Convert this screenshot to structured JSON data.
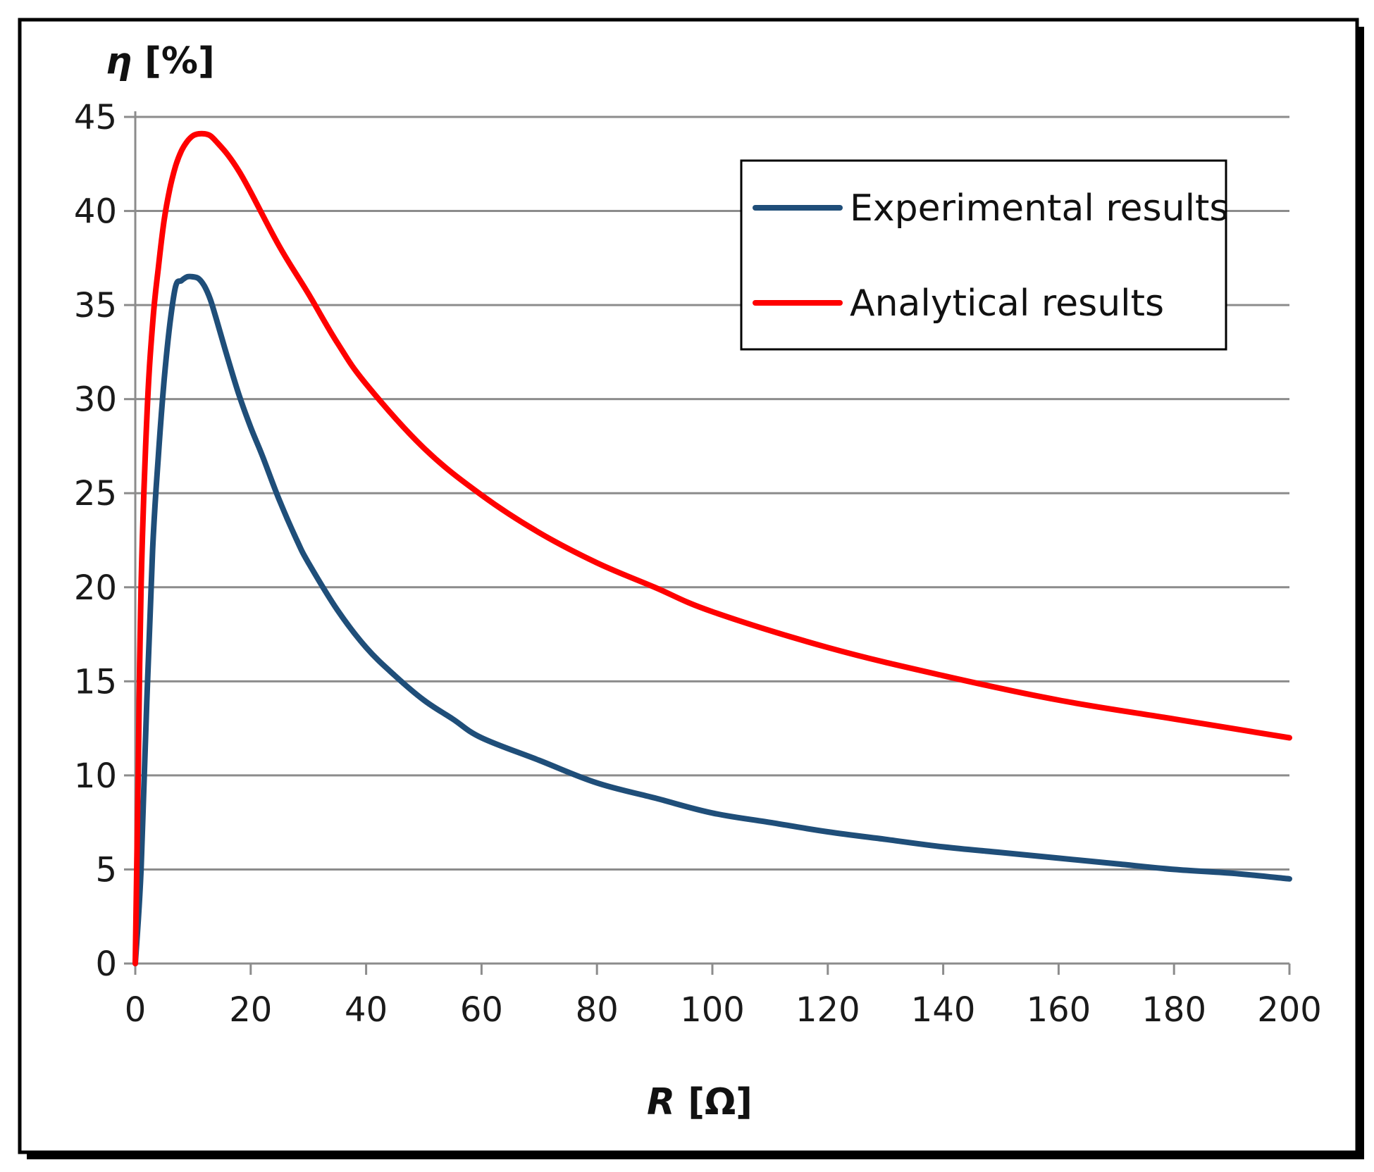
{
  "chart_data": {
    "type": "line",
    "title": "",
    "ylabel_symbol": "η",
    "ylabel_unit": " [%]",
    "xlabel_symbol": "R",
    "xlabel_unit": " [Ω]",
    "xlim": [
      0,
      200
    ],
    "ylim": [
      0,
      45
    ],
    "xticks": [
      0,
      20,
      40,
      60,
      80,
      100,
      120,
      140,
      160,
      180,
      200
    ],
    "yticks": [
      0,
      5,
      10,
      15,
      20,
      25,
      30,
      35,
      40,
      45
    ],
    "grid": true,
    "legend_position": "top-right",
    "series": [
      {
        "name": "Experimental results",
        "color": "#1f4e79",
        "x": [
          0,
          1,
          2,
          3,
          4,
          5,
          6,
          7,
          8,
          9,
          10,
          11,
          12,
          13,
          14,
          16,
          18,
          20,
          22,
          25,
          28,
          30,
          35,
          40,
          45,
          50,
          55,
          60,
          70,
          80,
          90,
          100,
          110,
          120,
          130,
          140,
          150,
          160,
          170,
          180,
          190,
          200
        ],
        "y": [
          0,
          5,
          14,
          22,
          27,
          31,
          34,
          36,
          36.3,
          36.5,
          36.5,
          36.4,
          36.0,
          35.3,
          34.3,
          32.2,
          30.2,
          28.5,
          27.0,
          24.6,
          22.5,
          21.3,
          18.8,
          16.8,
          15.3,
          14.0,
          13.0,
          12.0,
          10.8,
          9.6,
          8.8,
          8.0,
          7.5,
          7.0,
          6.6,
          6.2,
          5.9,
          5.6,
          5.3,
          5.0,
          4.8,
          4.5
        ]
      },
      {
        "name": "Analytical results",
        "color": "#ff0000",
        "x": [
          0,
          0.5,
          1,
          2,
          3,
          4,
          5,
          6,
          7,
          8,
          9,
          10,
          11,
          12,
          13,
          14,
          16,
          18,
          20,
          25,
          30,
          35,
          40,
          50,
          60,
          70,
          80,
          90,
          100,
          120,
          140,
          160,
          180,
          200
        ],
        "y": [
          0,
          10,
          20,
          29,
          34,
          37,
          39.5,
          41.2,
          42.4,
          43.2,
          43.7,
          44.0,
          44.1,
          44.1,
          44.0,
          43.7,
          43.0,
          42.1,
          41.0,
          38.1,
          35.6,
          33.0,
          30.8,
          27.4,
          24.9,
          22.9,
          21.3,
          20.0,
          18.7,
          16.8,
          15.3,
          14.0,
          13.0,
          12.0
        ]
      }
    ]
  }
}
